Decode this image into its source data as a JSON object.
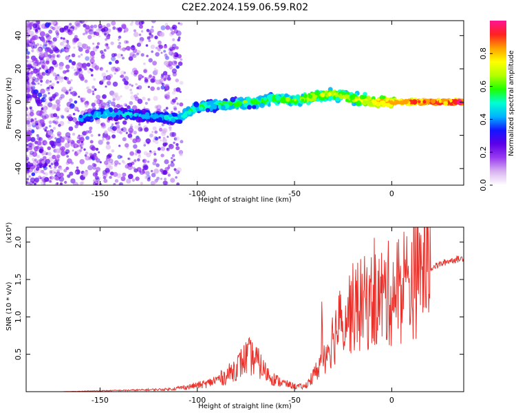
{
  "title": "C2E2.2024.159.06.59.R02",
  "chart_data": [
    {
      "type": "heatmap",
      "xlabel": "Height of straight line (km)",
      "ylabel": "Frequency (Hz)",
      "xlim": [
        -188,
        37
      ],
      "ylim": [
        -50,
        49
      ],
      "xticks": [
        -150,
        -100,
        -50,
        0
      ],
      "yticks": [
        -40,
        -20,
        0,
        20,
        40
      ],
      "colorbar": {
        "label": "Normalized spectral amplitude",
        "range": [
          0.0,
          1.0
        ],
        "ticks": [
          "0.0",
          "0.2",
          "0.4",
          "0.6",
          "0.8"
        ],
        "colors": [
          "#ffffff",
          "#d9b3f0",
          "#9a3cf0",
          "#5c00e8",
          "#1414ff",
          "#00b4ff",
          "#00ffd2",
          "#1eff00",
          "#b4ff00",
          "#ffff00",
          "#ffa000",
          "#ff2020",
          "#ff1493"
        ]
      },
      "ridge": {
        "x": [
          -160,
          -150,
          -140,
          -130,
          -120,
          -110,
          -100,
          -90,
          -80,
          -70,
          -60,
          -50,
          -40,
          -30,
          -20,
          -10,
          0,
          10,
          20,
          37
        ],
        "y": [
          -10,
          -7,
          -7,
          -8,
          -9,
          -10,
          -3,
          -2,
          -1,
          0,
          2,
          1,
          3,
          5,
          2,
          0,
          0,
          0,
          0,
          0
        ],
        "amplitude": [
          0.45,
          0.5,
          0.5,
          0.45,
          0.45,
          0.5,
          0.55,
          0.55,
          0.6,
          0.6,
          0.6,
          0.65,
          0.7,
          0.7,
          0.7,
          0.8,
          0.85,
          0.9,
          0.95,
          1.0
        ]
      }
    },
    {
      "type": "line",
      "xlabel": "Height of straight line (km)",
      "ylabel": "SNR (10 * v/v)",
      "yscale_label": "(x10⁴)",
      "xlim": [
        -188,
        37
      ],
      "ylim": [
        0,
        2.2
      ],
      "xticks": [
        -150,
        -100,
        -50,
        0
      ],
      "yticks": [
        0.5,
        1.0,
        1.5,
        2.0
      ],
      "ytick_labels": [
        "0.5",
        "1.0",
        "1.5",
        "2.0"
      ],
      "line_color": "#e8312a",
      "series": [
        {
          "x": [
            -188,
            -170,
            -150,
            -130,
            -115,
            -105,
            -95,
            -85,
            -78,
            -74,
            -70,
            -65,
            -60,
            -55,
            -50,
            -45,
            -40,
            -35,
            -30,
            -25,
            -20,
            -15,
            -10,
            -5,
            0,
            5,
            10,
            15,
            20,
            25,
            30,
            37
          ],
          "y": [
            0.0,
            0.0,
            0.01,
            0.02,
            0.03,
            0.06,
            0.1,
            0.2,
            0.35,
            0.45,
            0.4,
            0.25,
            0.15,
            0.1,
            0.07,
            0.06,
            0.2,
            0.45,
            0.7,
            0.95,
            1.05,
            1.1,
            1.15,
            1.2,
            1.25,
            1.3,
            1.4,
            1.55,
            1.65,
            1.7,
            1.75,
            1.78
          ]
        }
      ]
    }
  ]
}
